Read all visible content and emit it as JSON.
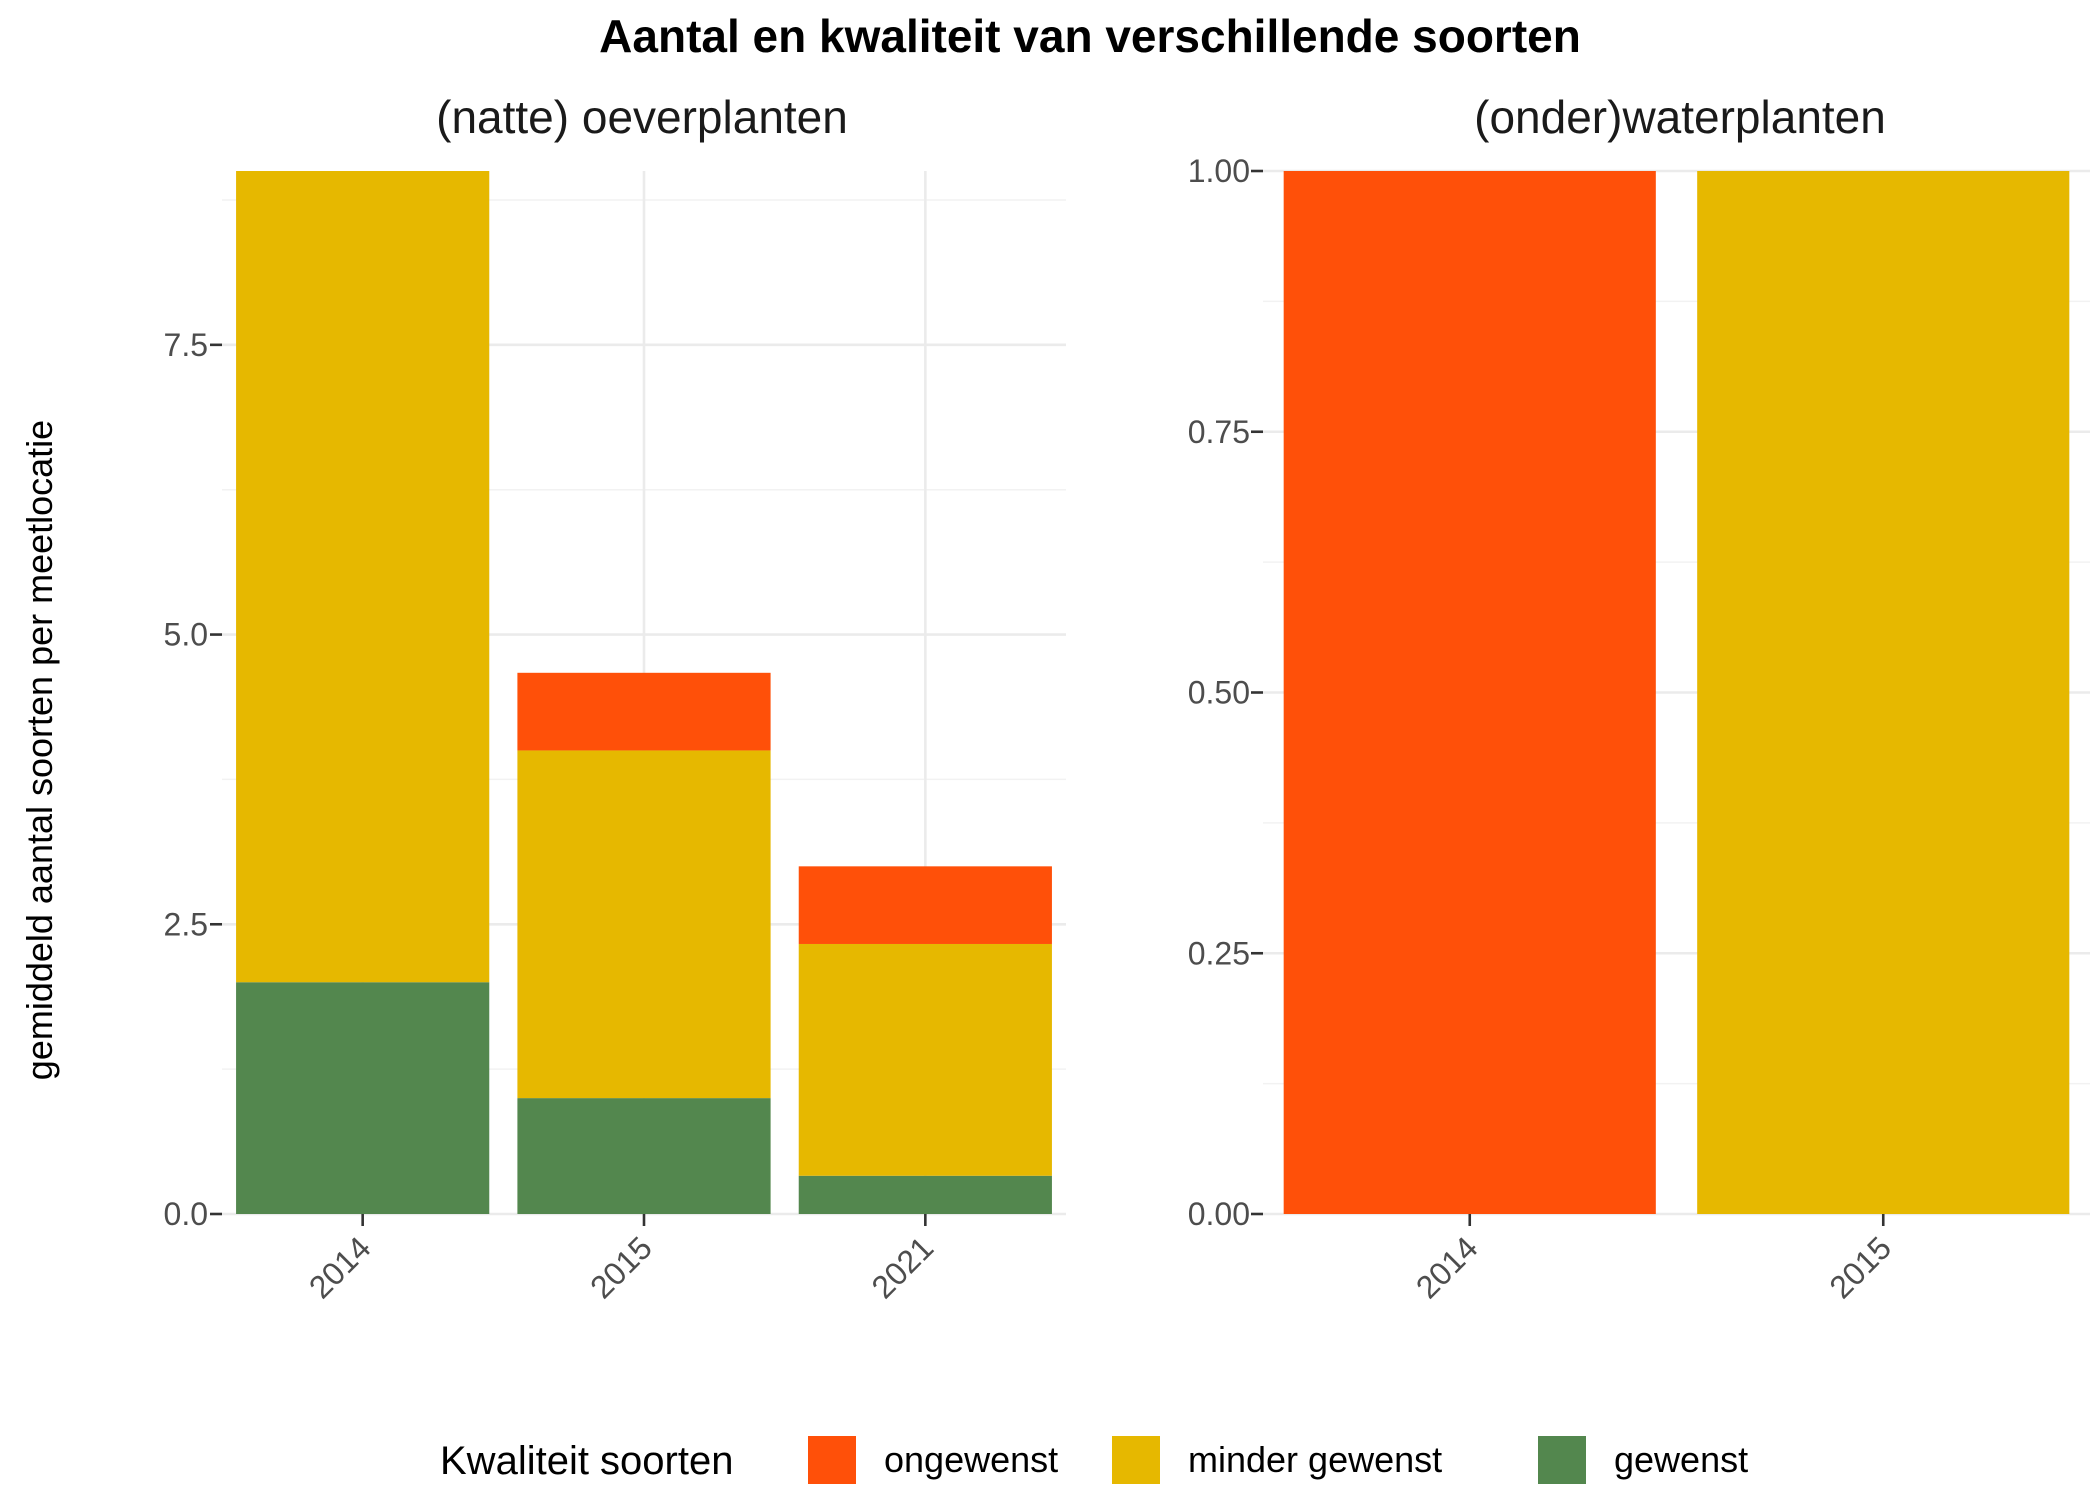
{
  "title": "Aantal en kwaliteit van verschillende soorten",
  "colors": {
    "ongewenst": "#FF5009",
    "minder gewenst": "#E6B800",
    "gewenst": "#53874E"
  },
  "chart_data": [
    {
      "type": "bar",
      "stacked": true,
      "title": "(natte) oeverplanten",
      "xlabel": "",
      "ylabel": "gemiddeld aantal soorten per meetlocatie",
      "categories": [
        "2014",
        "2015",
        "2021"
      ],
      "ylim": [
        0,
        9
      ],
      "yticks": [
        "0.0",
        "2.5",
        "5.0",
        "7.5"
      ],
      "ytick_values": [
        0,
        2.5,
        5,
        7.5
      ],
      "grid": true,
      "series": [
        {
          "name": "gewenst",
          "values": [
            2,
            1,
            0.33
          ]
        },
        {
          "name": "minder gewenst",
          "values": [
            7,
            3,
            2
          ]
        },
        {
          "name": "ongewenst",
          "values": [
            0,
            0.67,
            0.67
          ]
        }
      ]
    },
    {
      "type": "bar",
      "stacked": true,
      "title": "(onder)waterplanten",
      "xlabel": "",
      "ylabel": "",
      "categories": [
        "2014",
        "2015"
      ],
      "ylim": [
        0,
        1
      ],
      "yticks": [
        "0.00",
        "0.25",
        "0.50",
        "0.75",
        "1.00"
      ],
      "ytick_values": [
        0,
        0.25,
        0.5,
        0.75,
        1
      ],
      "grid": true,
      "series": [
        {
          "name": "gewenst",
          "values": [
            0,
            0
          ]
        },
        {
          "name": "minder gewenst",
          "values": [
            0,
            1
          ]
        },
        {
          "name": "ongewenst",
          "values": [
            1,
            0
          ]
        }
      ]
    }
  ],
  "legend": {
    "title": "Kwaliteit soorten",
    "position": "bottom",
    "items": [
      "ongewenst",
      "minder gewenst",
      "gewenst"
    ]
  }
}
